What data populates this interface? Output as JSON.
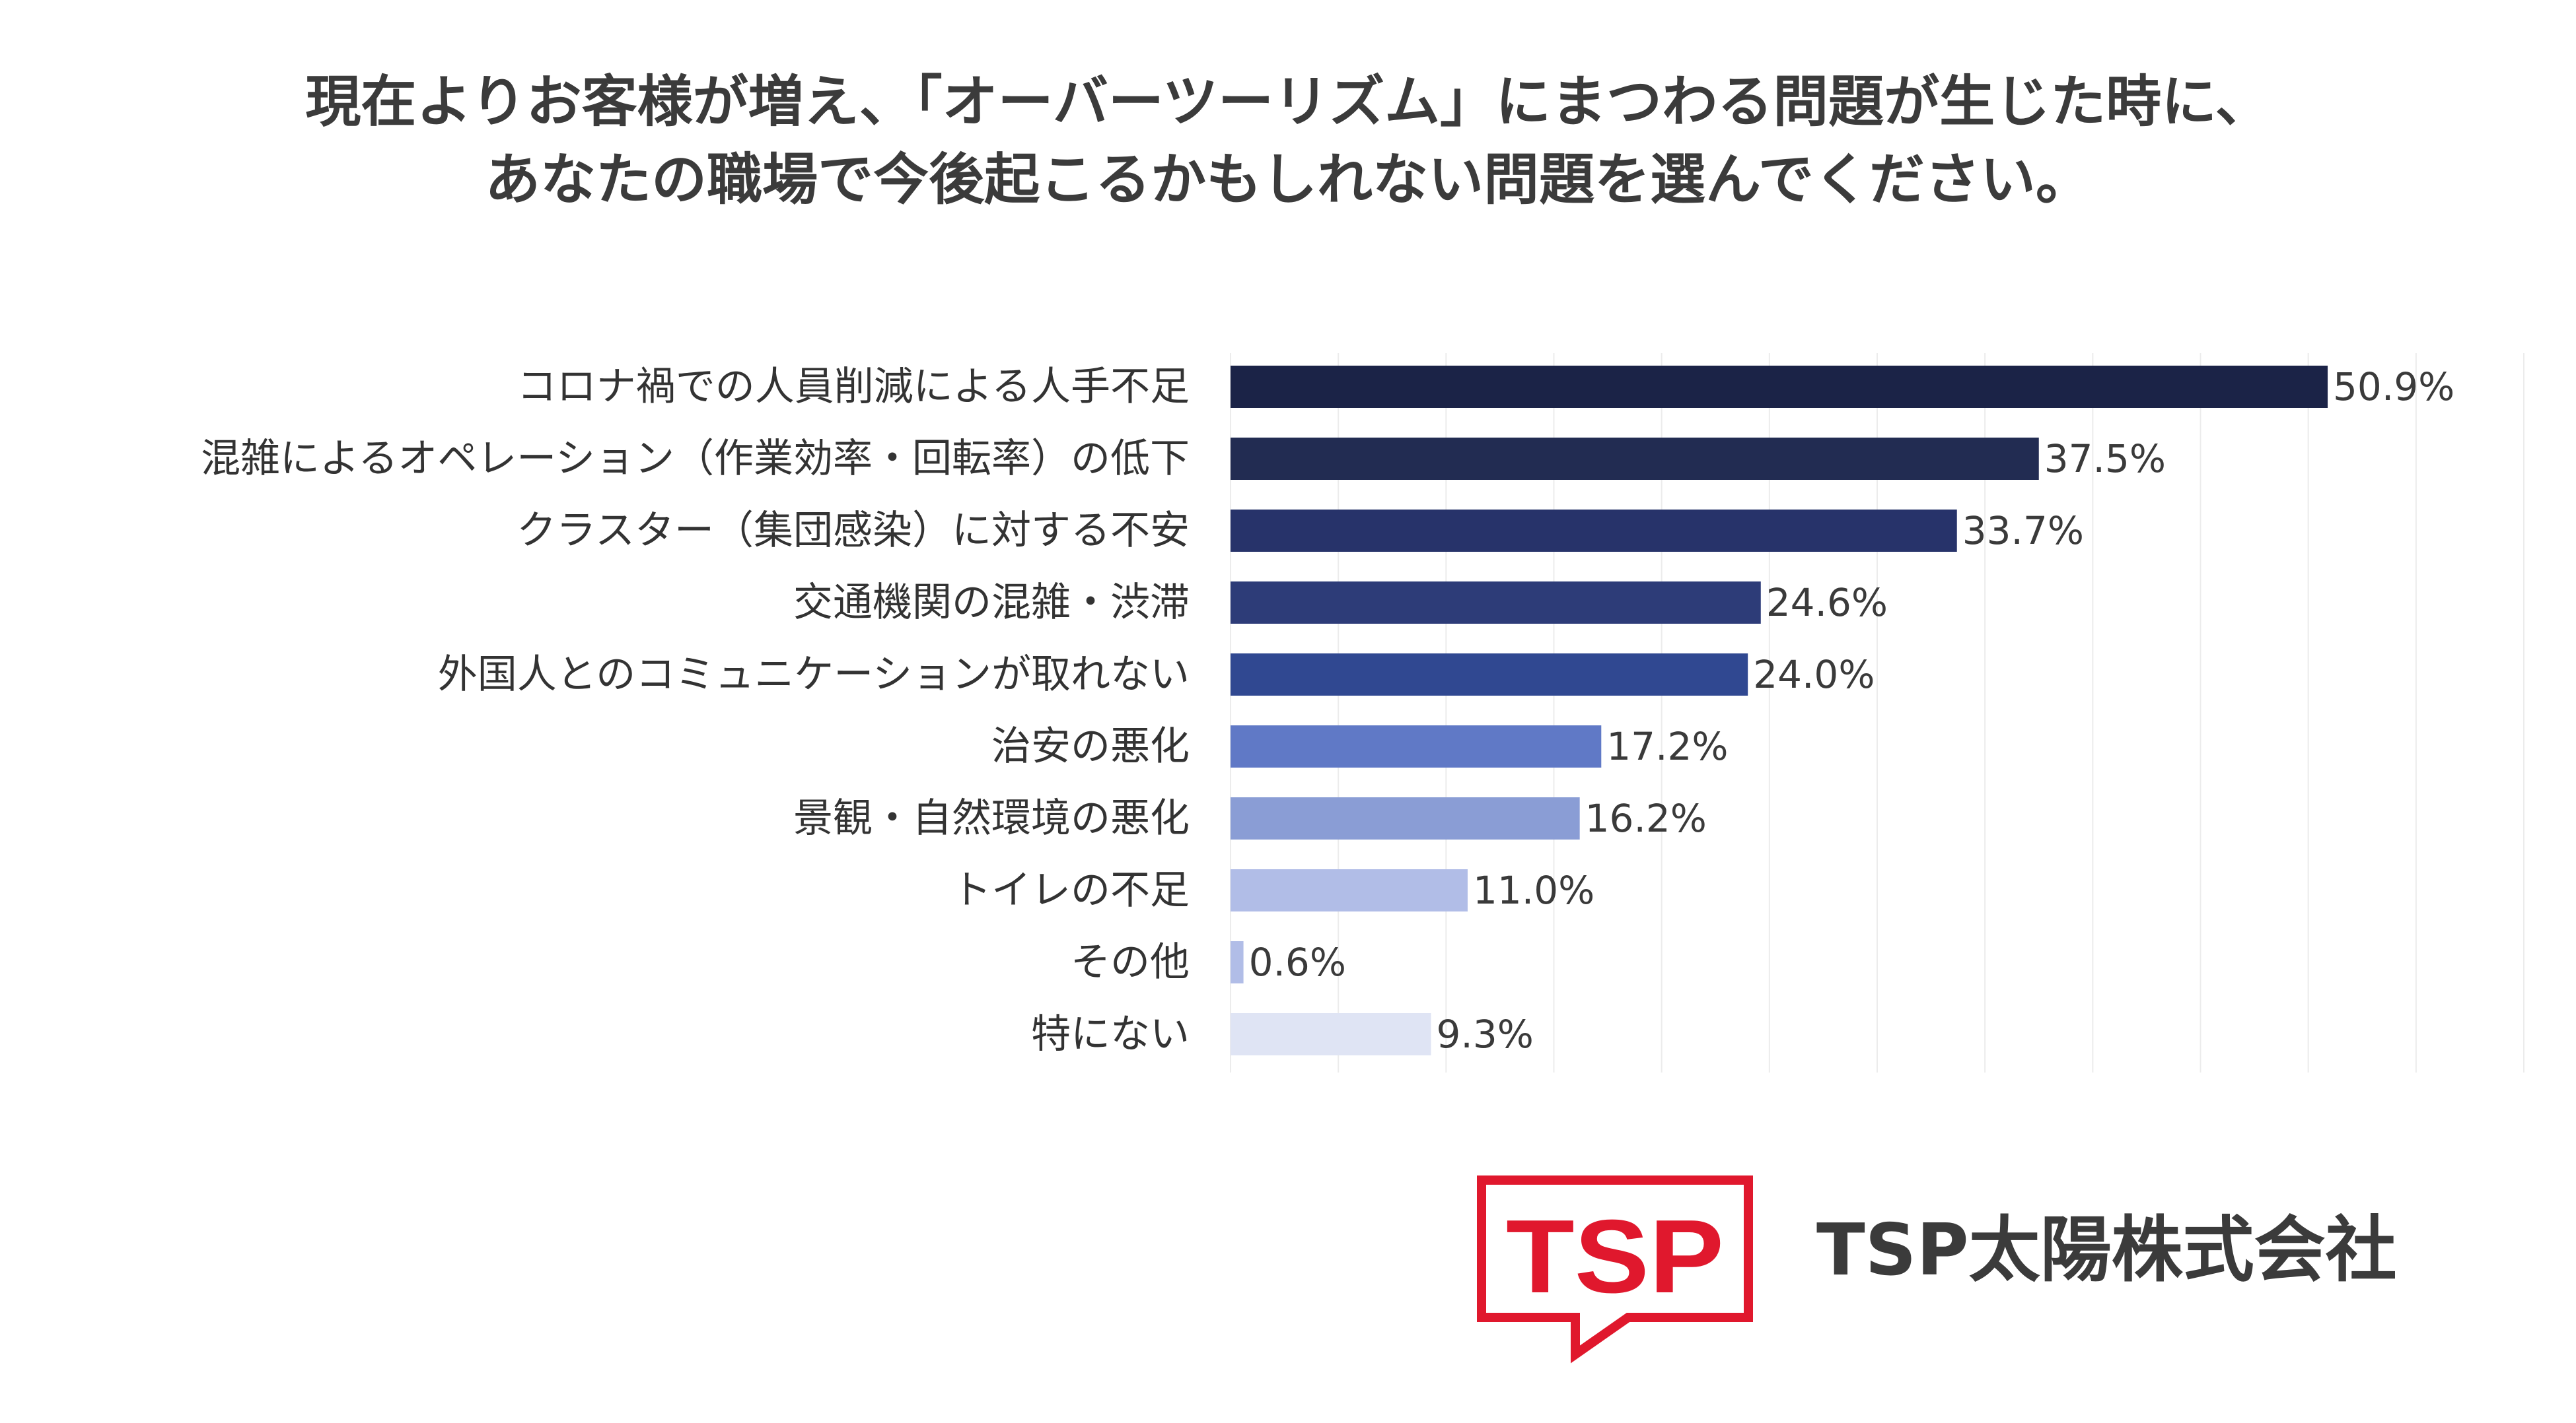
{
  "title": {
    "line1": "現在よりお客様が増え、「オーバーツーリズム」にまつわる問題が生じた時に、",
    "line2": "あなたの職場で今後起こるかもしれない問題を選んでください。"
  },
  "chart_data": {
    "type": "bar",
    "orientation": "horizontal",
    "title": "現在よりお客様が増え、「オーバーツーリズム」にまつわる問題が生じた時に、あなたの職場で今後起こるかもしれない問題を選んでください。",
    "xlabel": "",
    "ylabel": "",
    "unit": "%",
    "xlim": [
      0,
      60
    ],
    "grid": true,
    "categories": [
      "コロナ禍での人員削減による人手不足",
      "混雑によるオペレーション（作業効率・回転率）の低下",
      "クラスター（集団感染）に対する不安",
      "交通機関の混雑・渋滞",
      "外国人とのコミュニケーションが取れない",
      "治安の悪化",
      "景観・自然環境の悪化",
      "トイレの不足",
      "その他",
      "特にない"
    ],
    "values": [
      50.9,
      37.5,
      33.7,
      24.6,
      24.0,
      17.2,
      16.2,
      11.0,
      0.6,
      9.3
    ],
    "value_labels": [
      "50.9%",
      "37.5%",
      "33.7%",
      "24.6%",
      "24.0%",
      "17.2%",
      "16.2%",
      "11.0%",
      "0.6%",
      "9.3%"
    ],
    "colors": [
      "#1b2347",
      "#222c52",
      "#27336a",
      "#2d3c78",
      "#304891",
      "#6079c6",
      "#8a9dd5",
      "#b1bde7",
      "#b1bde7",
      "#dfe4f4"
    ]
  },
  "logo": {
    "text": "TSP",
    "color": "#e0182d"
  },
  "company": {
    "name": "TSP太陽株式会社"
  }
}
